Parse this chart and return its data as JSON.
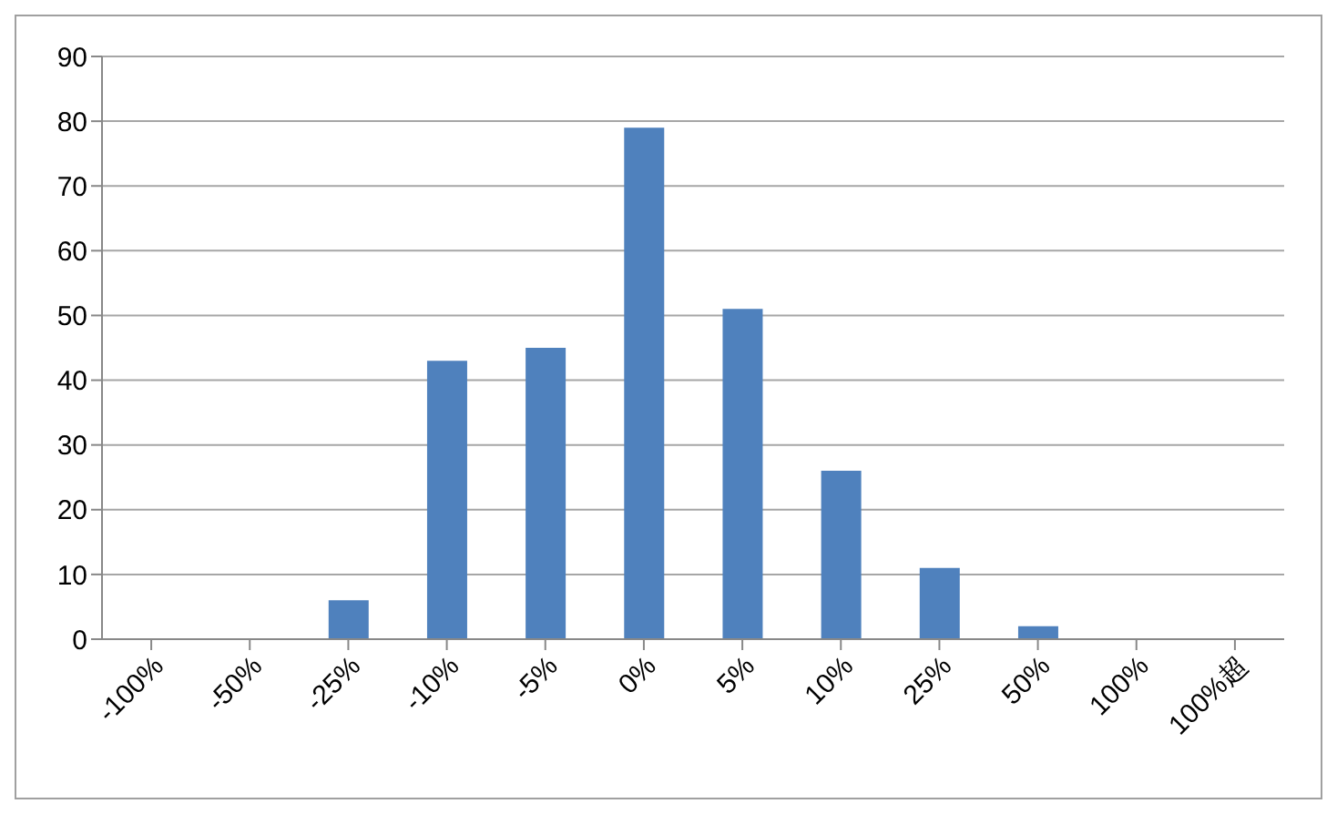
{
  "chart_data": {
    "type": "bar",
    "categories": [
      "-100%",
      "-50%",
      "-25%",
      "-10%",
      "-5%",
      "0%",
      "5%",
      "10%",
      "25%",
      "50%",
      "100%",
      "100%超"
    ],
    "values": [
      0,
      0,
      6,
      43,
      45,
      79,
      51,
      26,
      11,
      2,
      0,
      0
    ],
    "color": "#4f81bd",
    "ylim": [
      0,
      90
    ],
    "yticks": [
      0,
      10,
      20,
      30,
      40,
      50,
      60,
      70,
      80,
      90
    ],
    "grid": "y",
    "legend": false
  }
}
